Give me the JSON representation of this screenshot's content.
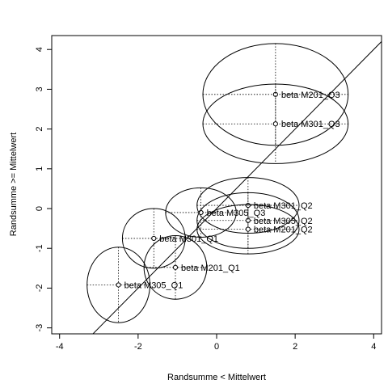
{
  "chart_data": {
    "type": "scatter",
    "xlabel": "Randsumme < Mittelwert",
    "ylabel": "Randsumme >= Mittelwert",
    "xlim": [
      -4.2,
      4.2
    ],
    "ylim": [
      -3.15,
      4.35
    ],
    "x_ticks": [
      -4,
      -2,
      0,
      2,
      4
    ],
    "y_ticks": [
      -3,
      -2,
      -1,
      0,
      1,
      2,
      3,
      4
    ],
    "grid": false,
    "reference_line": {
      "slope": 1,
      "intercept": 0
    },
    "points": [
      {
        "label": "beta M201_Q3",
        "x": 1.5,
        "y": 2.87,
        "rx": 1.85,
        "ry": 1.28
      },
      {
        "label": "beta M301_Q3",
        "x": 1.5,
        "y": 2.13,
        "rx": 1.85,
        "ry": 1.0
      },
      {
        "label": "beta M301_Q2",
        "x": 0.8,
        "y": 0.08,
        "rx": 1.3,
        "ry": 0.7
      },
      {
        "label": "beta M305_Q3",
        "x": -0.4,
        "y": -0.1,
        "rx": 0.9,
        "ry": 0.62
      },
      {
        "label": "beta M305_Q2",
        "x": 0.8,
        "y": -0.3,
        "rx": 1.3,
        "ry": 0.7
      },
      {
        "label": "beta M201_Q2",
        "x": 0.8,
        "y": -0.52,
        "rx": 1.3,
        "ry": 0.62
      },
      {
        "label": "beta M301_Q1",
        "x": -1.6,
        "y": -0.75,
        "rx": 0.8,
        "ry": 0.75
      },
      {
        "label": "beta M201_Q1",
        "x": -1.05,
        "y": -1.48,
        "rx": 0.8,
        "ry": 0.8
      },
      {
        "label": "beta M305_Q1",
        "x": -2.5,
        "y": -1.92,
        "rx": 0.8,
        "ry": 0.95
      }
    ]
  }
}
